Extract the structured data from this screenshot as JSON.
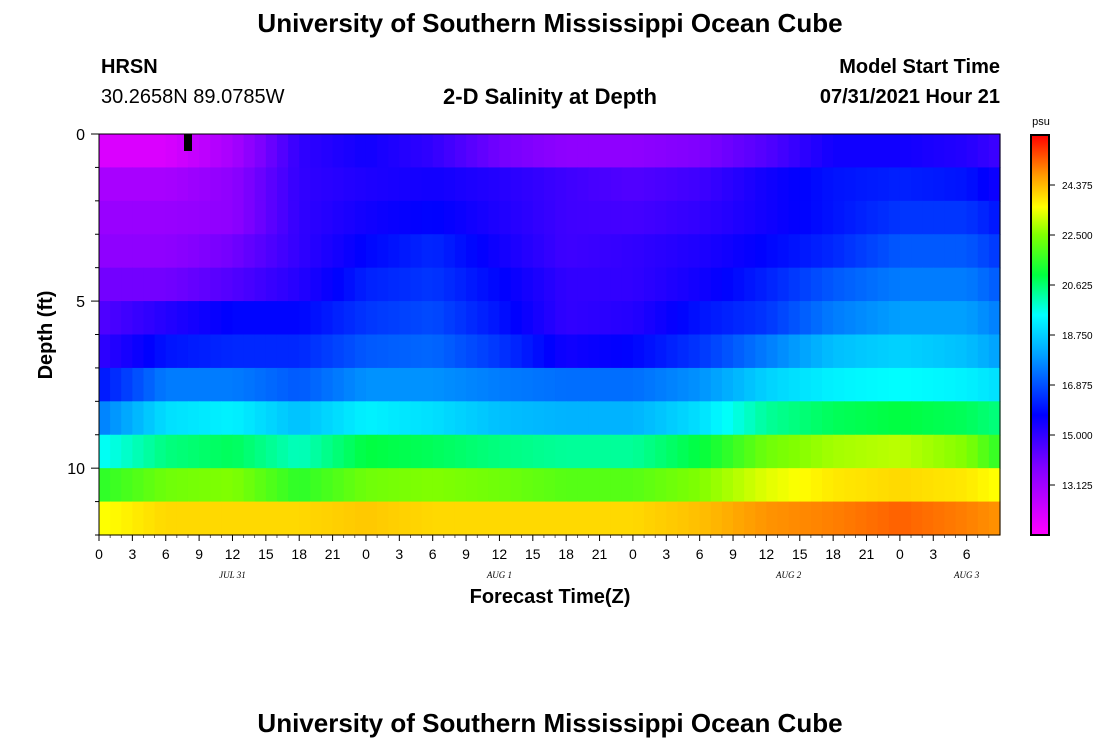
{
  "page_title": "University of Southern Mississippi Ocean Cube",
  "footer_title": "University of Southern Mississippi Ocean Cube",
  "station": {
    "name": "HRSN",
    "coords": "30.2658N  89.0785W"
  },
  "plot_title": "2-D Salinity at Depth",
  "model_start": {
    "label": "Model Start Time",
    "value": "07/31/2021 Hour 21"
  },
  "chart_data": {
    "type": "heatmap",
    "title": "2-D Salinity at Depth",
    "xlabel": "Forecast Time(Z)",
    "ylabel": "Depth (ft)",
    "ylim": [
      0,
      12
    ],
    "y_ticks": [
      0,
      5,
      10
    ],
    "x_hours_range": [
      0,
      81
    ],
    "x_tick_labels": [
      "0",
      "3",
      "6",
      "9",
      "12",
      "15",
      "18",
      "21",
      "0",
      "3",
      "6",
      "9",
      "12",
      "15",
      "18",
      "21",
      "0",
      "3",
      "6",
      "9",
      "12",
      "15",
      "18",
      "21",
      "0",
      "3",
      "6"
    ],
    "date_labels": [
      {
        "text": "JUL 31",
        "hour": 12
      },
      {
        "text": "AUG 1",
        "hour": 36
      },
      {
        "text": "AUG 2",
        "hour": 62
      },
      {
        "text": "AUG 3",
        "hour": 78
      }
    ],
    "marker_hour": 8,
    "colorbar": {
      "unit": "psu",
      "range": [
        11.25,
        26.25
      ],
      "tick_labels": [
        "13.125",
        "15.000",
        "16.875",
        "18.750",
        "20.625",
        "22.500",
        "24.375"
      ],
      "tick_values": [
        13.125,
        15.0,
        16.875,
        18.75,
        20.625,
        22.5,
        24.375
      ]
    },
    "depth_layers_ft": [
      0.5,
      1.5,
      2.5,
      3.5,
      4.5,
      5.5,
      6.5,
      7.5,
      8.5,
      9.5,
      10.5,
      11.5
    ],
    "series": [
      {
        "name": "0.5 ft",
        "values": [
          12.0,
          12.0,
          13.0,
          15.0,
          15.5,
          15.0,
          14.0,
          13.5,
          13.5,
          13.8,
          14.5,
          15.5,
          15.5,
          15.2,
          14.8
        ]
      },
      {
        "name": "1.5 ft",
        "values": [
          13.0,
          13.0,
          13.5,
          15.0,
          15.3,
          15.5,
          15.2,
          14.8,
          14.5,
          14.8,
          15.5,
          16.0,
          16.2,
          16.0,
          15.5
        ]
      },
      {
        "name": "2.5 ft",
        "values": [
          13.3,
          13.3,
          13.5,
          15.0,
          15.5,
          15.8,
          15.3,
          14.8,
          14.7,
          15.0,
          15.5,
          16.0,
          16.5,
          16.5,
          16.0
        ]
      },
      {
        "name": "3.5 ft",
        "values": [
          13.5,
          13.5,
          14.0,
          15.0,
          15.8,
          16.3,
          15.5,
          14.8,
          15.0,
          15.3,
          15.8,
          16.3,
          17.0,
          17.0,
          16.5
        ]
      },
      {
        "name": "4.5 ft",
        "values": [
          14.0,
          14.0,
          14.5,
          15.2,
          16.2,
          16.5,
          15.8,
          15.0,
          15.0,
          15.5,
          16.2,
          17.0,
          17.5,
          17.5,
          17.0
        ]
      },
      {
        "name": "5.5 ft",
        "values": [
          14.5,
          15.2,
          15.8,
          15.8,
          16.5,
          16.8,
          16.0,
          15.0,
          15.2,
          16.0,
          16.5,
          17.5,
          18.0,
          18.0,
          17.5
        ]
      },
      {
        "name": "6.5 ft",
        "values": [
          15.0,
          16.0,
          16.3,
          16.3,
          17.0,
          17.2,
          16.5,
          15.5,
          15.8,
          16.5,
          17.5,
          18.5,
          18.8,
          18.5,
          18.0
        ]
      },
      {
        "name": "7.5 ft",
        "values": [
          16.0,
          17.5,
          17.5,
          17.0,
          17.8,
          17.8,
          17.5,
          17.3,
          17.3,
          17.8,
          18.8,
          19.3,
          19.5,
          19.3,
          19.0
        ]
      },
      {
        "name": "8.5 ft",
        "values": [
          17.5,
          19.0,
          19.3,
          18.5,
          19.3,
          19.0,
          18.5,
          18.3,
          18.3,
          19.0,
          20.3,
          20.8,
          21.0,
          20.8,
          20.5
        ]
      },
      {
        "name": "9.5 ft",
        "values": [
          19.5,
          20.5,
          20.8,
          20.0,
          21.0,
          20.8,
          20.5,
          20.3,
          20.3,
          21.0,
          22.3,
          22.8,
          23.0,
          22.5,
          21.5
        ]
      },
      {
        "name": "10.5 ft",
        "values": [
          21.5,
          22.3,
          22.5,
          21.5,
          22.3,
          22.5,
          22.3,
          22.0,
          22.0,
          22.5,
          23.3,
          23.8,
          24.0,
          23.8,
          23.5
        ]
      },
      {
        "name": "11.5 ft",
        "values": [
          23.5,
          24.0,
          24.0,
          24.0,
          24.2,
          24.0,
          24.0,
          24.0,
          24.0,
          24.3,
          24.8,
          25.0,
          25.3,
          25.0,
          24.8
        ]
      }
    ],
    "series_x_hours": [
      0,
      6,
      12,
      18,
      24,
      30,
      36,
      42,
      48,
      54,
      60,
      66,
      72,
      78,
      81
    ]
  }
}
